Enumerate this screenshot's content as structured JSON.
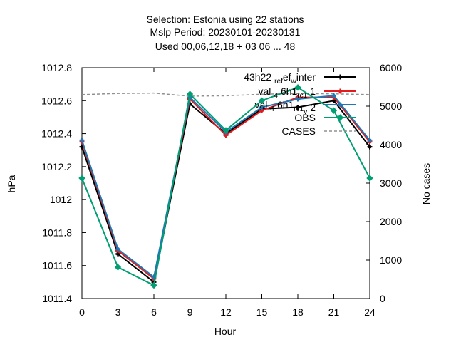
{
  "chart_data": {
    "type": "line",
    "title_lines": [
      "Selection: Estonia using    22 stations",
      "Mslp   Period: 20230101-20230131",
      "Used  00,06,12,18  + 03 06 ... 48"
    ],
    "xlabel": "Hour",
    "ylabel": "hPa",
    "y2label": "No cases",
    "xlim": [
      0,
      24
    ],
    "ylim": [
      1011.4,
      1012.8
    ],
    "y2lim": [
      0,
      6000
    ],
    "x_ticks": [
      0,
      3,
      6,
      9,
      12,
      15,
      18,
      21,
      24
    ],
    "y_ticks": [
      "1011.4",
      "1011.6",
      "1011.8",
      "1012",
      "1012.2",
      "1012.4",
      "1012.6",
      "1012.8"
    ],
    "y2_ticks": [
      "0",
      "1000",
      "2000",
      "3000",
      "4000",
      "5000",
      "6000"
    ],
    "x": [
      0,
      3,
      6,
      9,
      12,
      15,
      18,
      21,
      24
    ],
    "series": [
      {
        "name": "43h22_ref_w inter",
        "legend_main": "43h22",
        "legend_sub": "ref",
        "legend_mid": "ef",
        "legend_sub2": "w",
        "legend_tail": "inter",
        "color": "#000000",
        "marker": "plus",
        "values": [
          1012.32,
          1011.67,
          1011.5,
          1012.58,
          1012.4,
          1012.55,
          1012.56,
          1012.6,
          1012.32
        ]
      },
      {
        "name": "val_4 6h1_rc1_v 1",
        "legend_a": "val",
        "legend_sub_a": "4",
        "legend_b": "6h1",
        "legend_sub_b": "rc1",
        "legend_c": "1",
        "color": "#e41a1c",
        "marker": "plus",
        "values": [
          1012.35,
          1011.69,
          1011.52,
          1012.61,
          1012.39,
          1012.54,
          1012.62,
          1012.62,
          1012.35
        ]
      },
      {
        "name": "val_4 6h1_rc1_v 2",
        "legend_a": "val",
        "legend_sub_a": "4",
        "legend_b": "6h1",
        "legend_sub_b": "rc1",
        "legend_sub_c": "v",
        "legend_c": "2",
        "color": "#1f77b4",
        "marker": "plus",
        "values": [
          1012.36,
          1011.7,
          1011.53,
          1012.62,
          1012.41,
          1012.56,
          1012.61,
          1012.63,
          1012.36
        ]
      },
      {
        "name": "OBS",
        "color": "#009e73",
        "marker": "diamond",
        "values": [
          1012.13,
          1011.59,
          1011.48,
          1012.64,
          1012.42,
          1012.6,
          1012.68,
          1012.54,
          1012.13
        ]
      }
    ],
    "cases": {
      "name": "CASES",
      "color": "#909090",
      "x": [
        0,
        3,
        6,
        9,
        12,
        15,
        18,
        21,
        24
      ],
      "values": [
        5300,
        5330,
        5340,
        5260,
        5270,
        5310,
        5330,
        5320,
        5300
      ]
    },
    "grid": false,
    "legend_position": "top-right"
  }
}
